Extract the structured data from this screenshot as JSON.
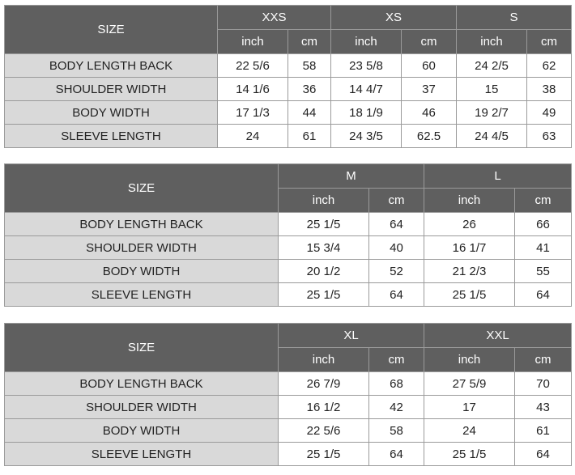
{
  "tables": [
    {
      "size_label": "SIZE",
      "sizes": [
        "XXS",
        "XS",
        "S"
      ],
      "unit_inch": "inch",
      "unit_cm": "cm",
      "rows": [
        {
          "label": "BODY LENGTH BACK",
          "values": [
            "22 5/6",
            "58",
            "23 5/8",
            "60",
            "24 2/5",
            "62"
          ]
        },
        {
          "label": "SHOULDER WIDTH",
          "values": [
            "14 1/6",
            "36",
            "14 4/7",
            "37",
            "15",
            "38"
          ]
        },
        {
          "label": "BODY WIDTH",
          "values": [
            "17 1/3",
            "44",
            "18 1/9",
            "46",
            "19 2/7",
            "49"
          ]
        },
        {
          "label": "SLEEVE LENGTH",
          "values": [
            "24",
            "61",
            "24 3/5",
            "62.5",
            "24 4/5",
            "63"
          ]
        }
      ]
    },
    {
      "size_label": "SIZE",
      "sizes": [
        "M",
        "L"
      ],
      "unit_inch": "inch",
      "unit_cm": "cm",
      "rows": [
        {
          "label": "BODY LENGTH BACK",
          "values": [
            "25 1/5",
            "64",
            "26",
            "66"
          ]
        },
        {
          "label": "SHOULDER WIDTH",
          "values": [
            "15 3/4",
            "40",
            "16 1/7",
            "41"
          ]
        },
        {
          "label": "BODY WIDTH",
          "values": [
            "20 1/2",
            "52",
            "21 2/3",
            "55"
          ]
        },
        {
          "label": "SLEEVE LENGTH",
          "values": [
            "25 1/5",
            "64",
            "25 1/5",
            "64"
          ]
        }
      ]
    },
    {
      "size_label": "SIZE",
      "sizes": [
        "XL",
        "XXL"
      ],
      "unit_inch": "inch",
      "unit_cm": "cm",
      "rows": [
        {
          "label": "BODY LENGTH BACK",
          "values": [
            "26 7/9",
            "68",
            "27 5/9",
            "70"
          ]
        },
        {
          "label": "SHOULDER WIDTH",
          "values": [
            "16 1/2",
            "42",
            "17",
            "43"
          ]
        },
        {
          "label": "BODY WIDTH",
          "values": [
            "22 5/6",
            "58",
            "24",
            "61"
          ]
        },
        {
          "label": "SLEEVE LENGTH",
          "values": [
            "25 1/5",
            "64",
            "25 1/5",
            "64"
          ]
        }
      ]
    }
  ]
}
